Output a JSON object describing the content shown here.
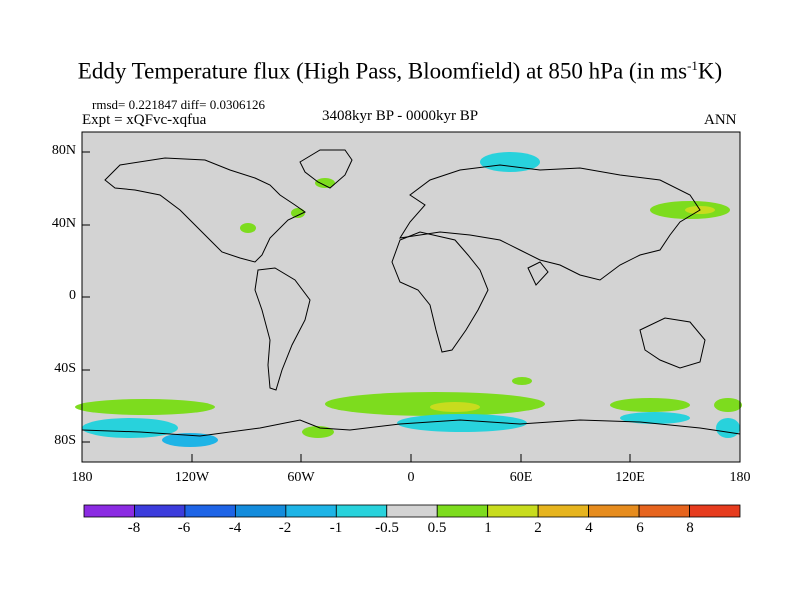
{
  "title_main": "Eddy Temperature flux (High Pass, Bloomfield) at 850 hPa (in ms",
  "title_sup": "-1",
  "title_end": "K)",
  "rmsd_line": "rmsd= 0.221847 diff= 0.0306126",
  "expt": "Expt = xQFvc-xqfua",
  "period": "3408kyr BP - 0000kyr BP",
  "season": "ANN",
  "lat_labels": [
    "80N",
    "40N",
    "0",
    "40S",
    "80S"
  ],
  "lon_labels": [
    "180",
    "120W",
    "60W",
    "0",
    "60E",
    "120E",
    "180"
  ],
  "colorbar": {
    "labels": [
      "-8",
      "-6",
      "-4",
      "-2",
      "-1",
      "-0.5",
      "0.5",
      "1",
      "2",
      "4",
      "6",
      "8"
    ],
    "colors": [
      "#8b2be2",
      "#3c3cdc",
      "#1e64e6",
      "#148cdc",
      "#1eb4e6",
      "#28d2dc",
      "#d3d3d3",
      "#7ddc1e",
      "#c8dc1e",
      "#e6b41e",
      "#e68c1e",
      "#e6641e",
      "#e63c1e"
    ]
  },
  "map": {
    "land_color": "#d3d3d3",
    "coast_color": "#000000"
  }
}
